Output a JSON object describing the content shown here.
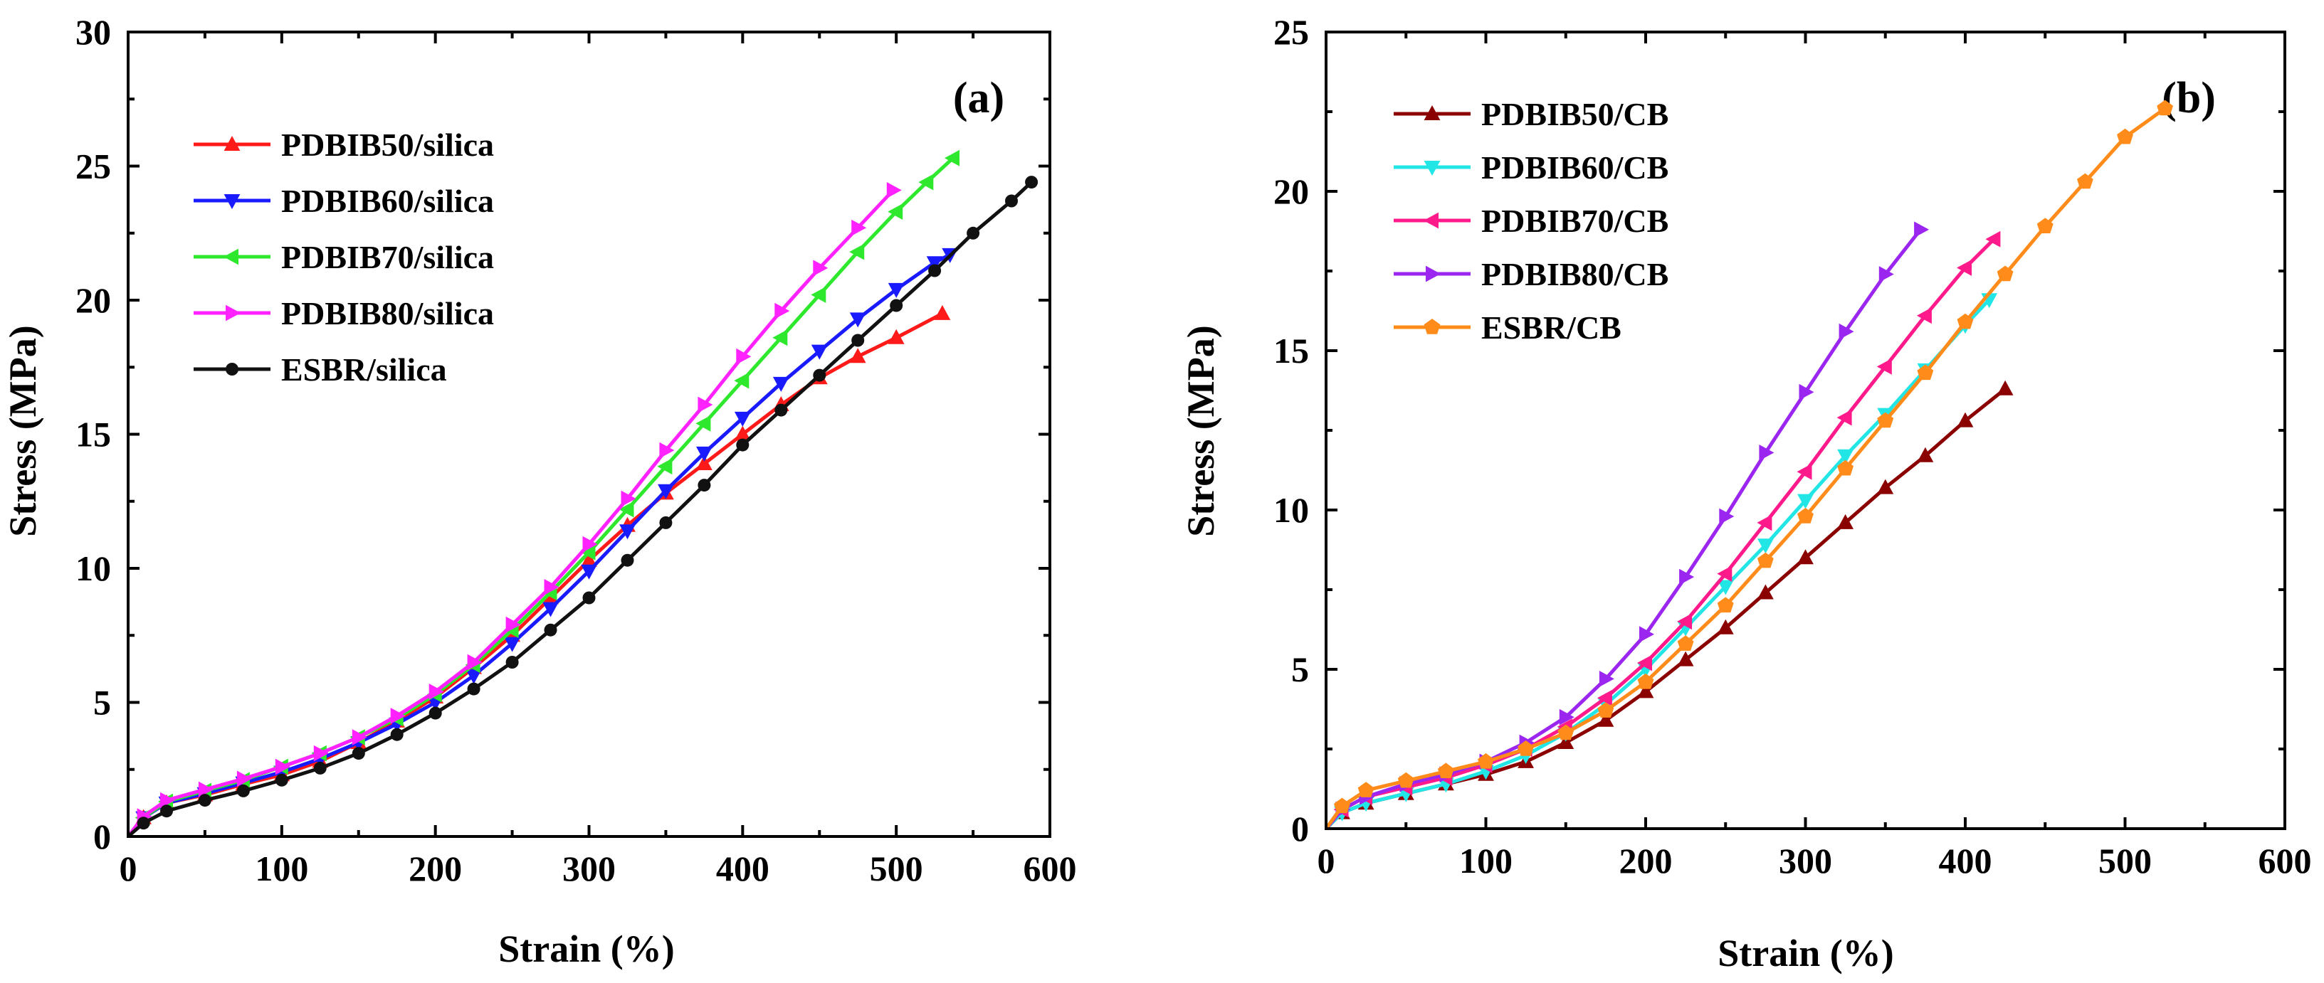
{
  "chart_data": [
    {
      "type": "line",
      "panel_label": "(a)",
      "xlabel": "Strain (%)",
      "ylabel": "Stress (MPa)",
      "xlim": [
        0,
        600
      ],
      "ylim": [
        0,
        30
      ],
      "xticks": [
        "0",
        "100",
        "200",
        "300",
        "400",
        "500",
        "600"
      ],
      "yticks": [
        "0",
        "5",
        "10",
        "15",
        "20",
        "25",
        "30"
      ],
      "legend_position": "top-left",
      "series": [
        {
          "name": "PDBIB50/silica",
          "color": "#ff1a1a",
          "marker": "triangle-up",
          "x": [
            0,
            10,
            25,
            50,
            75,
            100,
            125,
            150,
            175,
            200,
            225,
            250,
            275,
            300,
            325,
            350,
            375,
            400,
            425,
            450,
            475,
            500,
            530
          ],
          "y": [
            0,
            0.7,
            1.25,
            1.55,
            1.95,
            2.3,
            2.8,
            3.5,
            4.3,
            5.2,
            6.3,
            7.5,
            8.9,
            10.3,
            11.6,
            12.8,
            13.9,
            15.0,
            16.1,
            17.1,
            17.9,
            18.6,
            19.5
          ]
        },
        {
          "name": "PDBIB60/silica",
          "color": "#1a1aff",
          "marker": "triangle-down",
          "x": [
            0,
            10,
            25,
            50,
            75,
            100,
            125,
            150,
            175,
            200,
            225,
            250,
            275,
            300,
            325,
            350,
            375,
            400,
            425,
            450,
            475,
            500,
            525,
            535
          ],
          "y": [
            0,
            0.7,
            1.25,
            1.6,
            2.0,
            2.4,
            2.9,
            3.5,
            4.2,
            5.0,
            6.0,
            7.2,
            8.5,
            9.9,
            11.4,
            12.9,
            14.3,
            15.6,
            16.9,
            18.1,
            19.3,
            20.4,
            21.4,
            21.7
          ]
        },
        {
          "name": "PDBIB70/silica",
          "color": "#2ee82e",
          "marker": "triangle-left",
          "x": [
            0,
            10,
            25,
            50,
            75,
            100,
            125,
            150,
            175,
            200,
            225,
            250,
            275,
            300,
            325,
            350,
            375,
            400,
            425,
            450,
            475,
            500,
            520,
            537
          ],
          "y": [
            0,
            0.7,
            1.3,
            1.7,
            2.1,
            2.6,
            3.1,
            3.7,
            4.4,
            5.3,
            6.4,
            7.7,
            9.1,
            10.6,
            12.2,
            13.8,
            15.4,
            17.0,
            18.6,
            20.2,
            21.8,
            23.3,
            24.4,
            25.3
          ]
        },
        {
          "name": "PDBIB80/silica",
          "color": "#ff22ff",
          "marker": "triangle-right",
          "x": [
            0,
            10,
            25,
            50,
            75,
            100,
            125,
            150,
            175,
            200,
            225,
            250,
            275,
            300,
            325,
            350,
            375,
            400,
            425,
            450,
            475,
            498
          ],
          "y": [
            0,
            0.75,
            1.35,
            1.75,
            2.15,
            2.6,
            3.1,
            3.7,
            4.5,
            5.4,
            6.5,
            7.9,
            9.3,
            10.9,
            12.6,
            14.4,
            16.1,
            17.9,
            19.6,
            21.2,
            22.7,
            24.1
          ]
        },
        {
          "name": "ESBR/silica",
          "color": "#111111",
          "marker": "circle",
          "x": [
            0,
            10,
            25,
            50,
            75,
            100,
            125,
            150,
            175,
            200,
            225,
            250,
            275,
            300,
            325,
            350,
            375,
            400,
            425,
            450,
            475,
            500,
            525,
            550,
            575,
            588
          ],
          "y": [
            0,
            0.5,
            0.95,
            1.35,
            1.7,
            2.1,
            2.55,
            3.1,
            3.8,
            4.6,
            5.5,
            6.5,
            7.7,
            8.9,
            10.3,
            11.7,
            13.1,
            14.6,
            15.9,
            17.2,
            18.5,
            19.8,
            21.1,
            22.5,
            23.7,
            24.4
          ]
        }
      ]
    },
    {
      "type": "line",
      "panel_label": "(b)",
      "xlabel": "Strain (%)",
      "ylabel": "Stress (MPa)",
      "xlim": [
        0,
        600
      ],
      "ylim": [
        0,
        25
      ],
      "xticks": [
        "0",
        "100",
        "200",
        "300",
        "400",
        "500",
        "600"
      ],
      "yticks": [
        "0",
        "5",
        "10",
        "15",
        "20",
        "25"
      ],
      "legend_position": "top-left",
      "series": [
        {
          "name": "PDBIB50/CB",
          "color": "#8b0000",
          "marker": "triangle-up",
          "x": [
            0,
            10,
            25,
            50,
            75,
            100,
            125,
            150,
            175,
            200,
            225,
            250,
            275,
            300,
            325,
            350,
            375,
            400,
            425
          ],
          "y": [
            0,
            0.5,
            0.8,
            1.1,
            1.4,
            1.7,
            2.1,
            2.7,
            3.4,
            4.3,
            5.3,
            6.3,
            7.4,
            8.5,
            9.6,
            10.7,
            11.7,
            12.8,
            13.8
          ]
        },
        {
          "name": "PDBIB60/CB",
          "color": "#22e5e5",
          "marker": "triangle-down",
          "x": [
            0,
            10,
            25,
            50,
            75,
            100,
            125,
            150,
            175,
            200,
            225,
            250,
            275,
            300,
            325,
            350,
            375,
            400,
            415
          ],
          "y": [
            0,
            0.5,
            0.8,
            1.1,
            1.4,
            1.8,
            2.3,
            3.0,
            3.9,
            5.0,
            6.3,
            7.6,
            8.9,
            10.3,
            11.7,
            13.0,
            14.4,
            15.8,
            16.6
          ]
        },
        {
          "name": "PDBIB70/CB",
          "color": "#ff1a8c",
          "marker": "triangle-left",
          "x": [
            0,
            10,
            25,
            50,
            75,
            100,
            125,
            150,
            175,
            200,
            225,
            250,
            275,
            300,
            325,
            350,
            375,
            400,
            418
          ],
          "y": [
            0,
            0.6,
            1.0,
            1.3,
            1.6,
            2.0,
            2.5,
            3.2,
            4.1,
            5.2,
            6.5,
            8.0,
            9.6,
            11.2,
            12.9,
            14.5,
            16.1,
            17.6,
            18.5
          ]
        },
        {
          "name": "PDBIB80/CB",
          "color": "#9b26f0",
          "marker": "triangle-right",
          "x": [
            0,
            10,
            25,
            50,
            75,
            100,
            125,
            150,
            175,
            200,
            225,
            250,
            275,
            300,
            325,
            350,
            372
          ],
          "y": [
            0,
            0.6,
            1.0,
            1.4,
            1.7,
            2.1,
            2.7,
            3.5,
            4.7,
            6.1,
            7.9,
            9.8,
            11.8,
            13.7,
            15.6,
            17.4,
            18.8
          ]
        },
        {
          "name": "ESBR/CB",
          "color": "#ff8c1a",
          "marker": "pentagon",
          "x": [
            0,
            10,
            25,
            50,
            75,
            100,
            125,
            150,
            175,
            200,
            225,
            250,
            275,
            300,
            325,
            350,
            375,
            400,
            425,
            450,
            475,
            500,
            525
          ],
          "y": [
            0,
            0.7,
            1.2,
            1.5,
            1.8,
            2.1,
            2.5,
            3.0,
            3.7,
            4.6,
            5.8,
            7.0,
            8.4,
            9.8,
            11.3,
            12.8,
            14.3,
            15.9,
            17.4,
            18.9,
            20.3,
            21.7,
            22.6
          ]
        }
      ]
    }
  ]
}
